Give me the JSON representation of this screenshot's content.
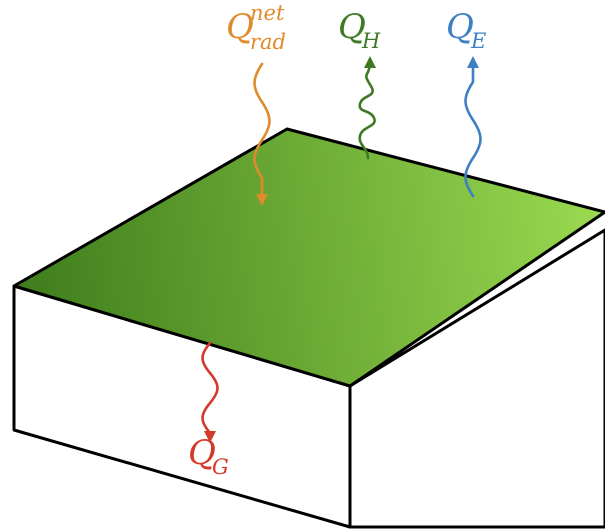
{
  "labels": {
    "radiation": {
      "main": "Q",
      "sup": "net",
      "sub": "rad"
    },
    "sensible": {
      "main": "Q",
      "sub": "H"
    },
    "latent": {
      "main": "Q",
      "sub": "E"
    },
    "ground": {
      "main": "Q",
      "sub": "G"
    }
  },
  "colors": {
    "radiation": "#e08a2c",
    "sensible": "#3e7a26",
    "latent": "#3f7fc4",
    "ground": "#d23a2a",
    "surface_dark": "#3f7d1d",
    "surface_light": "#9ad94f",
    "box_side": "#ffffff",
    "outline": "#000000"
  }
}
